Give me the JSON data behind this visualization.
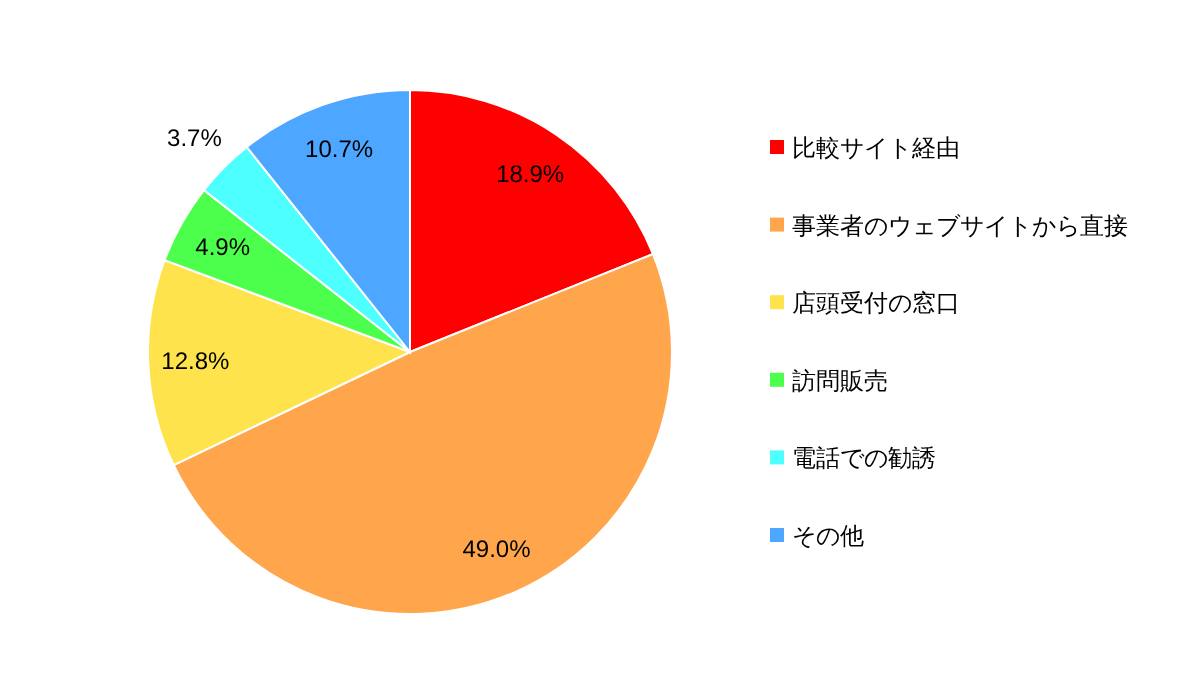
{
  "chart_data": {
    "type": "pie",
    "categories": [
      "比較サイト経由",
      "事業者のウェブサイトから直接",
      "店頭受付の窓口",
      "訪問販売",
      "電話での勧誘",
      "その他"
    ],
    "values": [
      18.9,
      49.0,
      12.8,
      4.9,
      3.7,
      10.7
    ],
    "value_labels": [
      "18.9%",
      "49.0%",
      "12.8%",
      "4.9%",
      "3.7%",
      "10.7%"
    ],
    "colors": [
      "#ff0000",
      "#ffa64d",
      "#ffe34d",
      "#4dff4d",
      "#4dffff",
      "#4da6ff"
    ],
    "legend": "right"
  }
}
